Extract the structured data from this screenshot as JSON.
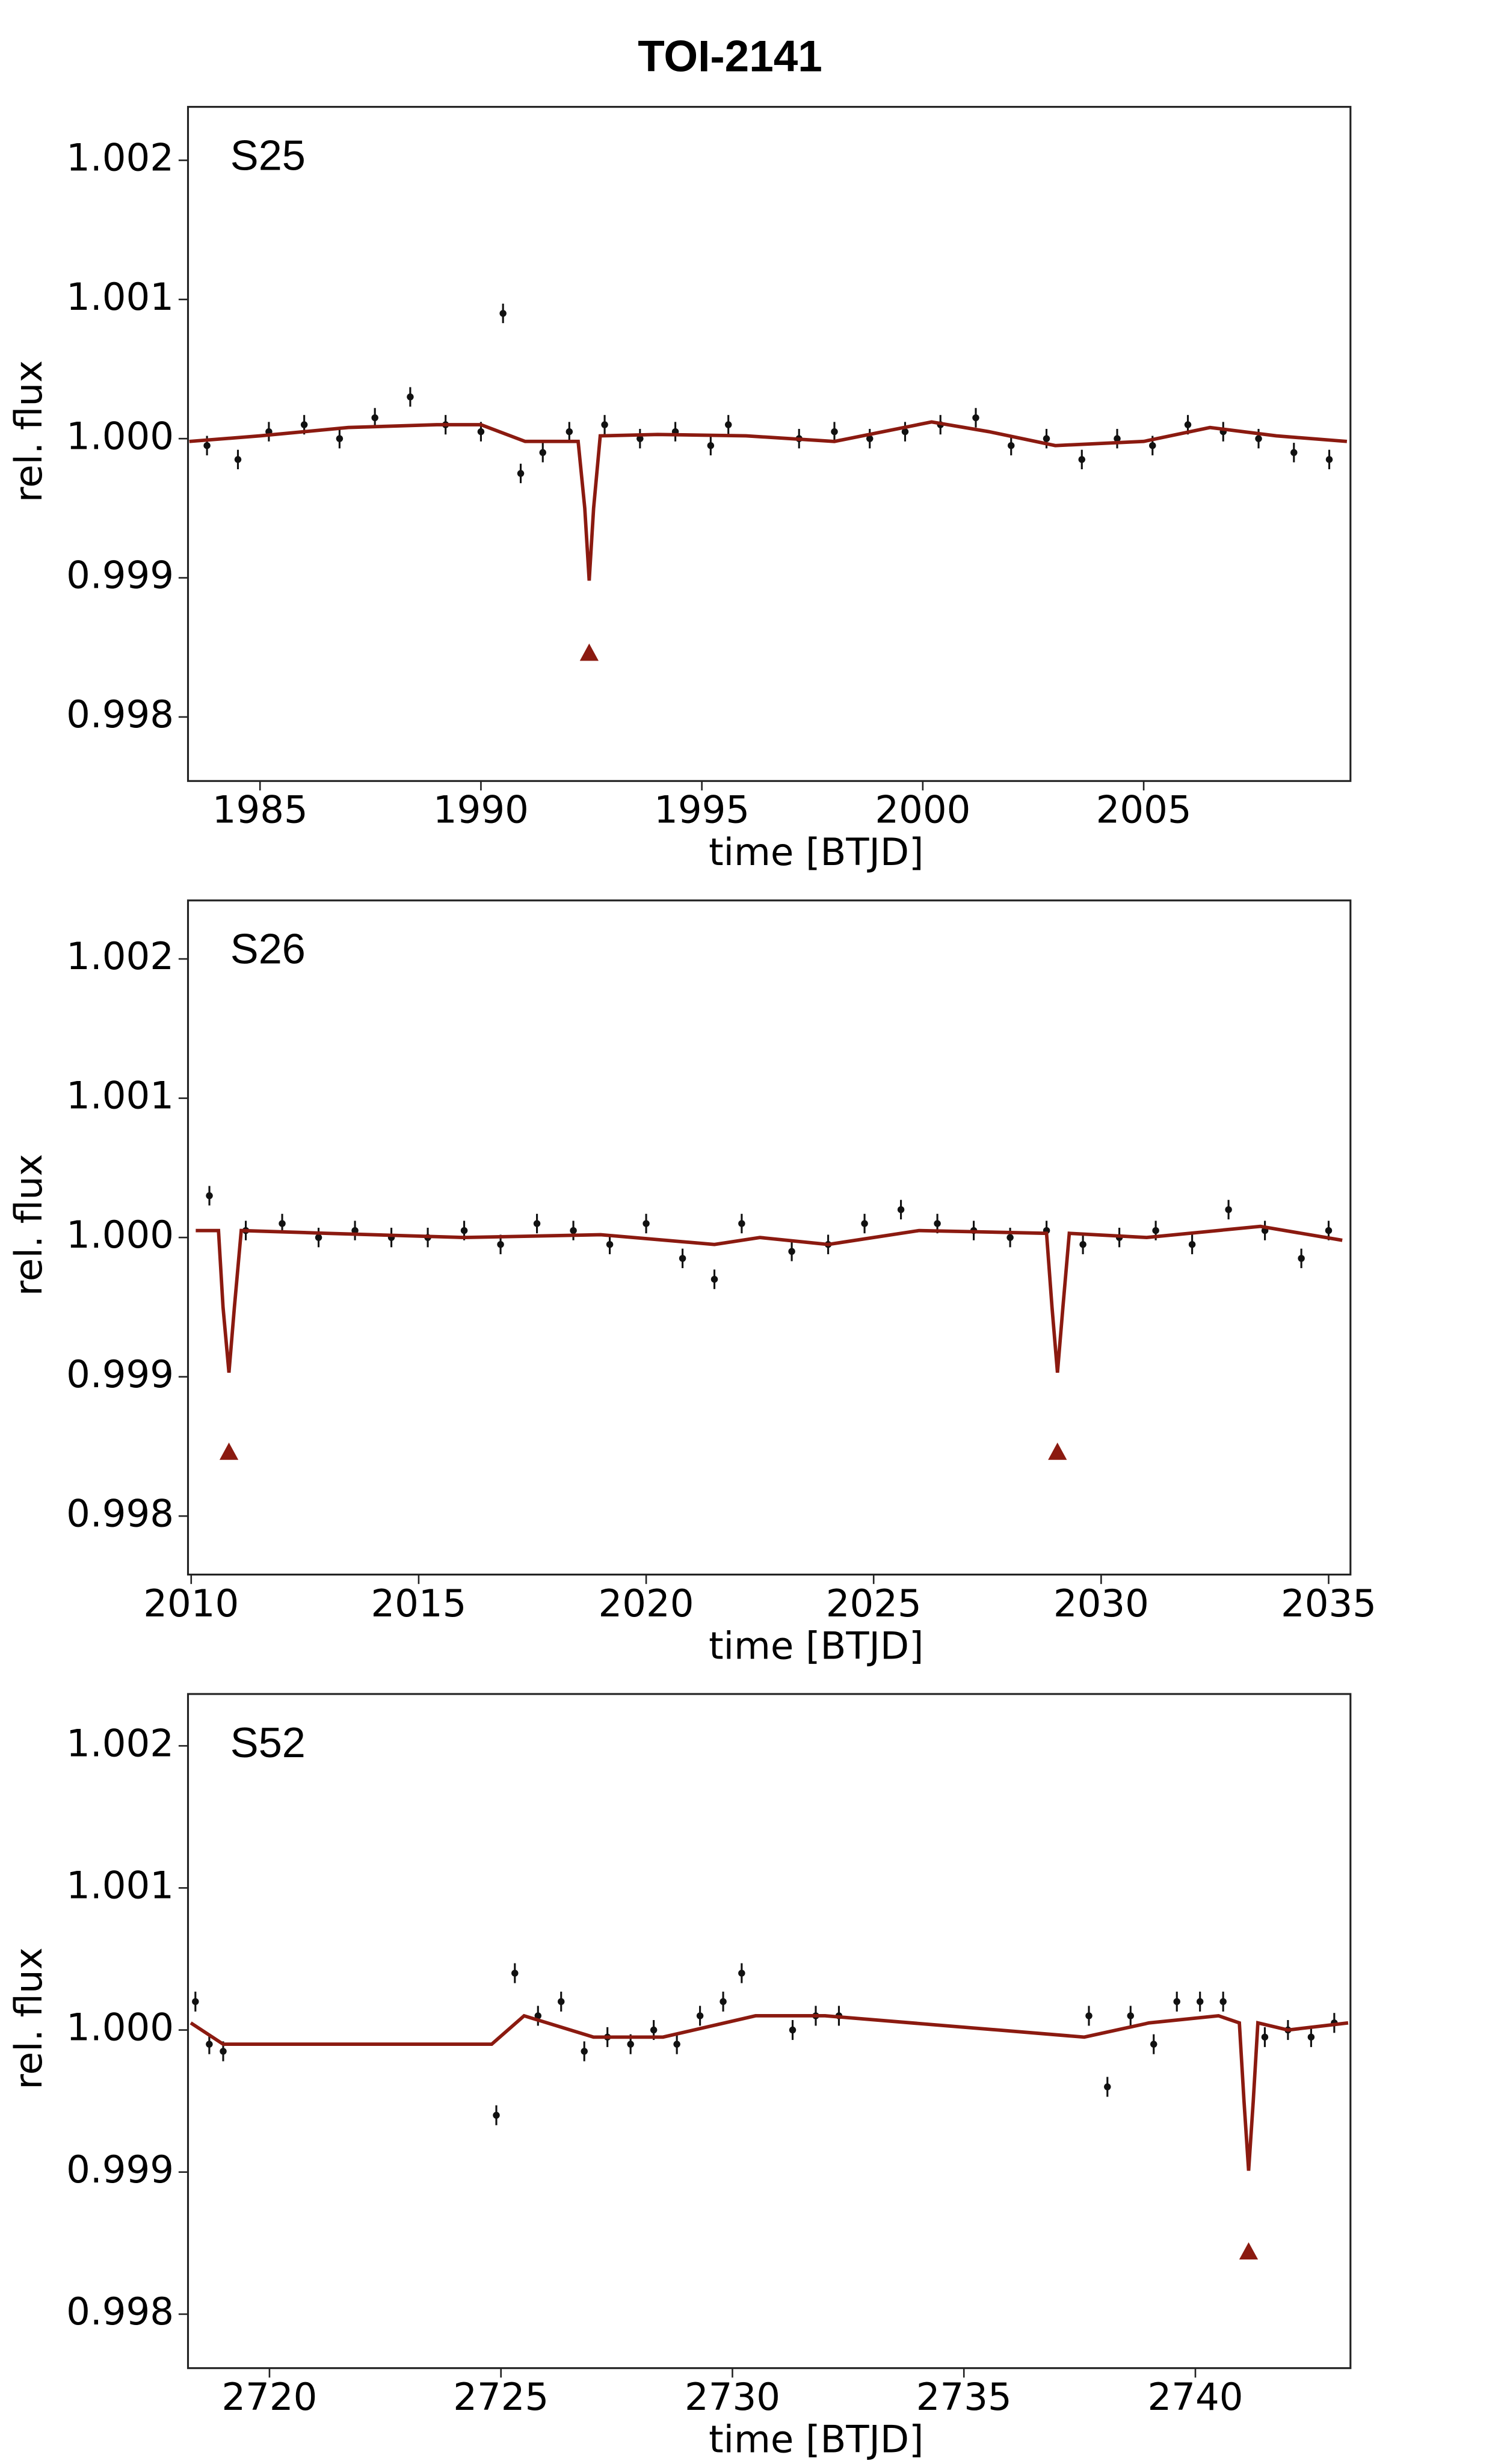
{
  "chart_data": [
    {
      "type": "scatter",
      "title": "TOI-2141",
      "label": "S25",
      "xlabel": "time [BTJD]",
      "ylabel": "rel. flux",
      "xlim": [
        1983.37,
        2009.68
      ],
      "xticks": [
        1985,
        1990,
        1995,
        2000,
        2005
      ],
      "ylim": [
        0.99754,
        1.002384
      ],
      "yticks": [
        0.998,
        0.999,
        {
          "value": 1,
          "label": "1.000"
        },
        1.001,
        1.002
      ],
      "yerr": 7e-05,
      "series": [
        {
          "marker": "errorbar",
          "color": "#111111",
          "x": [
            1983.8,
            1984.5,
            1985.2,
            1986,
            1986.8,
            1987.6,
            1988.4,
            1989.2,
            1990,
            1990.5,
            1990.9,
            1991.4,
            1992,
            1992.8,
            1993.6,
            1994.4,
            1995.2,
            1995.6,
            1997.2,
            1998,
            1998.8,
            1999.6,
            2000.4,
            2001.2,
            2002,
            2002.8,
            2003.6,
            2004.4,
            2005.2,
            2006,
            2006.8,
            2007.6,
            2008.4,
            2009.2
          ],
          "values": [
            0.99995,
            0.99985,
            1.00005,
            1.0001,
            1.0,
            1.00015,
            1.0003,
            1.0001,
            1.00005,
            1.0009,
            0.99975,
            0.9999,
            1.00005,
            1.0001,
            1.0,
            1.00005,
            0.99995,
            1.0001,
            1.0,
            1.00005,
            1.0,
            1.00005,
            1.0001,
            1.00015,
            0.99995,
            1.0,
            0.99985,
            1.0,
            0.99995,
            1.0001,
            1.00005,
            1.0,
            0.9999,
            0.99985
          ]
        },
        {
          "marker": "line",
          "color": "#8b1a10",
          "x": [
            1983.4,
            1985,
            1987,
            1989,
            1990,
            1991,
            1992.2,
            1992.35,
            1992.45,
            1992.55,
            1992.7,
            1994,
            1996,
            1998,
            2000.2,
            2001.5,
            2003,
            2005,
            2006.5,
            2008,
            2009.6
          ],
          "values": [
            0.99998,
            1.00002,
            1.00008,
            1.0001,
            1.0001,
            0.99998,
            0.99998,
            0.9995,
            0.99898,
            0.9995,
            1.00002,
            1.00003,
            1.00002,
            0.99998,
            1.00012,
            1.00005,
            0.99995,
            0.99998,
            1.00008,
            1.00002,
            0.99998
          ]
        },
        {
          "marker": "triangle",
          "color": "#8b1a10",
          "x": [
            1992.45
          ],
          "values": [
            0.99846
          ]
        }
      ]
    },
    {
      "type": "scatter",
      "label": "S26",
      "xlabel": "time [BTJD]",
      "ylabel": "rel. flux",
      "xlim": [
        2009.93,
        2035.48
      ],
      "xticks": [
        2010,
        2015,
        2020,
        2025,
        2030,
        2035
      ],
      "ylim": [
        0.99758,
        1.00242
      ],
      "yticks": [
        0.998,
        0.999,
        {
          "value": 1,
          "label": "1.000"
        },
        1.001,
        1.002
      ],
      "yerr": 7e-05,
      "series": [
        {
          "marker": "errorbar",
          "color": "#111111",
          "x": [
            2010.4,
            2011.2,
            2012,
            2012.8,
            2013.6,
            2014.4,
            2015.2,
            2016,
            2016.8,
            2017.6,
            2018.4,
            2019.2,
            2020,
            2020.8,
            2021.5,
            2022.1,
            2023.2,
            2024,
            2024.8,
            2025.6,
            2026.4,
            2027.2,
            2028,
            2028.8,
            2029.6,
            2030.4,
            2031.2,
            2032,
            2032.8,
            2033.6,
            2034.4,
            2035
          ],
          "values": [
            1.0003,
            1.00005,
            1.0001,
            1.0,
            1.00005,
            1.0,
            1.0,
            1.00005,
            0.99995,
            1.0001,
            1.00005,
            0.99995,
            1.0001,
            0.99985,
            0.9997,
            1.0001,
            0.9999,
            0.99995,
            1.0001,
            1.0002,
            1.0001,
            1.00005,
            1.0,
            1.00005,
            0.99995,
            1.0,
            1.00005,
            0.99995,
            1.0002,
            1.00005,
            0.99985,
            1.00005
          ]
        },
        {
          "marker": "line",
          "color": "#8b1a10",
          "x": [
            2010.1,
            2010.6,
            2010.7,
            2010.83,
            2010.95,
            2011.1,
            2013,
            2016,
            2019,
            2021.5,
            2022.5,
            2024,
            2026,
            2028.8,
            2028.92,
            2029.04,
            2029.16,
            2029.3,
            2031,
            2033.5,
            2035.3
          ],
          "values": [
            1.00005,
            1.00005,
            0.9995,
            0.99903,
            0.9995,
            1.00005,
            1.00003,
            1.0,
            1.00002,
            0.99995,
            1.0,
            0.99995,
            1.00005,
            1.00003,
            0.9995,
            0.99903,
            0.9995,
            1.00003,
            1.0,
            1.00008,
            0.99998
          ]
        },
        {
          "marker": "triangle",
          "color": "#8b1a10",
          "x": [
            2010.83,
            2029.04
          ],
          "values": [
            0.99846,
            0.99846
          ]
        }
      ]
    },
    {
      "type": "scatter",
      "label": "S52",
      "xlabel": "time [BTJD]",
      "ylabel": "rel. flux",
      "xlim": [
        2718.24,
        2743.35
      ],
      "xticks": [
        2720,
        2725,
        2730,
        2735,
        2740
      ],
      "ylim": [
        0.99762,
        1.002365
      ],
      "yticks": [
        0.998,
        0.999,
        {
          "value": 1,
          "label": "1.000"
        },
        1.001,
        1.002
      ],
      "yerr": 7e-05,
      "series": [
        {
          "marker": "errorbar",
          "color": "#111111",
          "x": [
            2718.4,
            2718.7,
            2719,
            2724.9,
            2725.3,
            2725.8,
            2726.3,
            2726.8,
            2727.3,
            2727.8,
            2728.3,
            2728.8,
            2729.3,
            2729.8,
            2730.2,
            2731.3,
            2731.8,
            2732.3,
            2737.7,
            2738.1,
            2738.6,
            2739.1,
            2739.6,
            2740.1,
            2740.6,
            2741.5,
            2742,
            2742.5,
            2743
          ],
          "values": [
            1.0002,
            0.9999,
            0.99985,
            0.9994,
            1.0004,
            1.0001,
            1.0002,
            0.99985,
            0.99995,
            0.9999,
            1.0,
            0.9999,
            1.0001,
            1.0002,
            1.0004,
            1.0,
            1.0001,
            1.0001,
            1.0001,
            0.9996,
            1.0001,
            0.9999,
            1.0002,
            1.0002,
            1.0002,
            0.99995,
            1.0,
            0.99995,
            1.00005
          ]
        },
        {
          "marker": "line",
          "color": "#8b1a10",
          "x": [
            2718.3,
            2719,
            2724.8,
            2725.5,
            2727,
            2728.5,
            2730.5,
            2732,
            2737.6,
            2739,
            2740.5,
            2740.95,
            2741.05,
            2741.15,
            2741.25,
            2741.35,
            2742,
            2743.3
          ],
          "values": [
            1.00005,
            0.9999,
            0.9999,
            1.0001,
            0.99995,
            0.99995,
            1.0001,
            1.0001,
            0.99995,
            1.00005,
            1.0001,
            1.00005,
            0.9995,
            0.99901,
            0.9995,
            1.00005,
            1.0,
            1.00005
          ]
        },
        {
          "marker": "triangle",
          "color": "#8b1a10",
          "x": [
            2741.15
          ],
          "values": [
            0.99844
          ]
        }
      ]
    }
  ]
}
